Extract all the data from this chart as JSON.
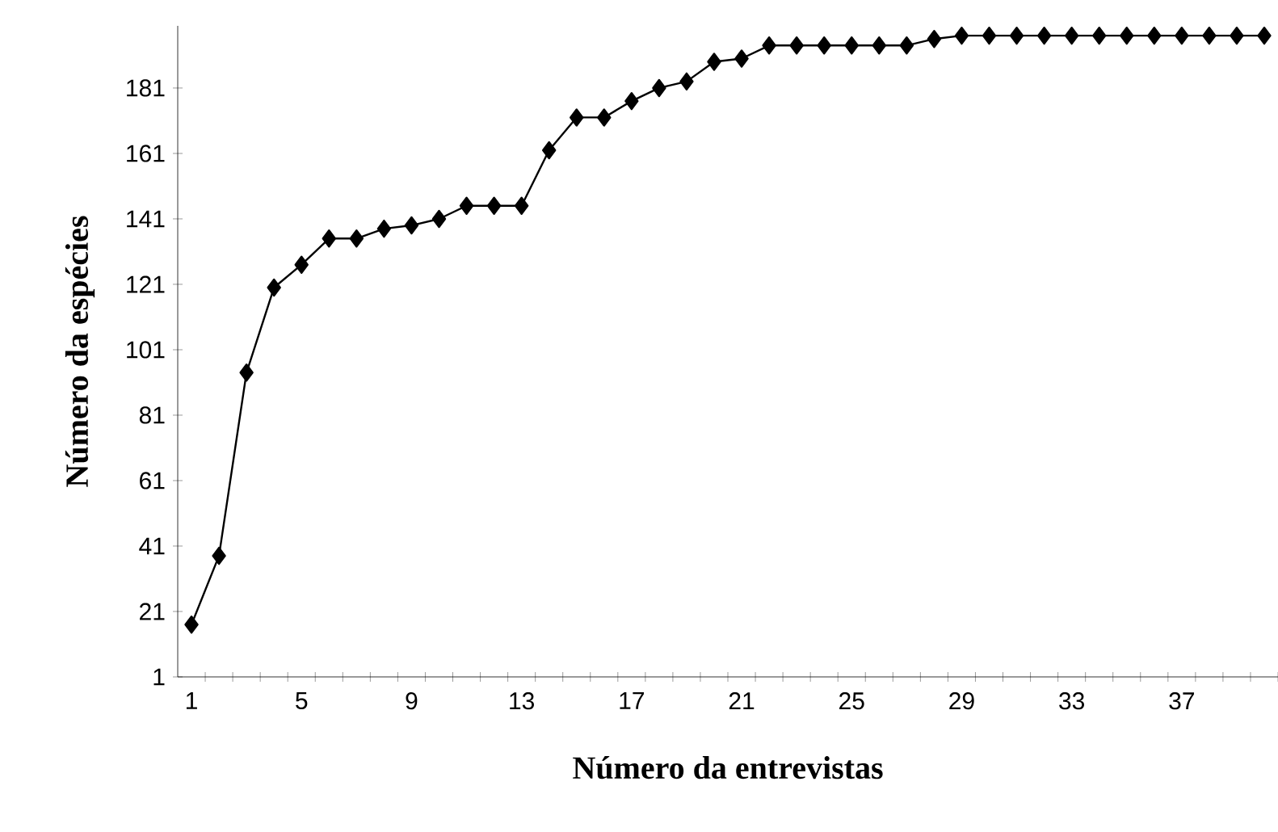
{
  "chart_data": {
    "type": "line",
    "xlabel": "Número da entrevistas",
    "ylabel": "Número da espécies",
    "categories": [
      "1",
      null,
      null,
      null,
      "5",
      null,
      null,
      null,
      "9",
      null,
      null,
      null,
      "13",
      null,
      null,
      null,
      "17",
      null,
      null,
      null,
      "21",
      null,
      null,
      null,
      "25",
      null,
      null,
      null,
      "29",
      null,
      null,
      null,
      "33",
      null,
      null,
      null,
      "37",
      null,
      null,
      null
    ],
    "series": [
      {
        "color": "#000000",
        "values": [
          17,
          38,
          94,
          120,
          127,
          135,
          135,
          138,
          139,
          141,
          145,
          145,
          145,
          162,
          172,
          172,
          177,
          181,
          183,
          189,
          190,
          194,
          194,
          194,
          194,
          194,
          194,
          196,
          197,
          197,
          197,
          197,
          197,
          197,
          197,
          197,
          197,
          197,
          197,
          197
        ]
      }
    ],
    "ylim": [
      1,
      200
    ],
    "yticks": [
      1,
      21,
      41,
      61,
      81,
      101,
      121,
      141,
      161,
      181
    ],
    "marker": "diamond",
    "line_style": "solid"
  }
}
